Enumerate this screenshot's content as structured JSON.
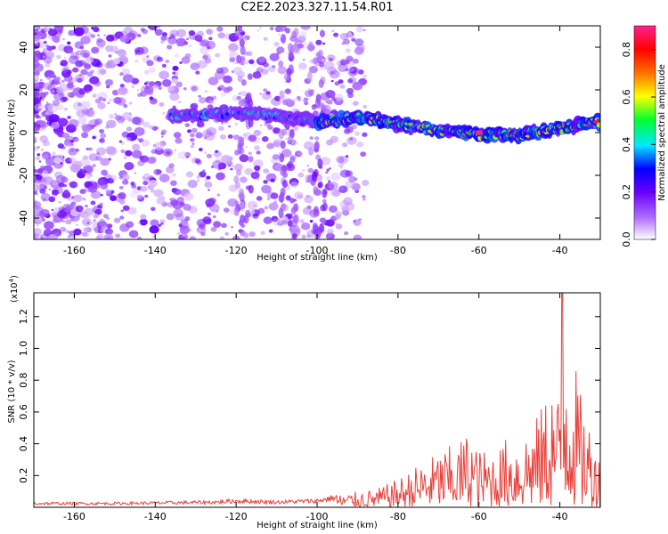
{
  "figure_title": "C2E2.2023.327.11.54.R01",
  "chart_data": [
    {
      "type": "heatmap",
      "xlabel": "Height of straight line (km)",
      "ylabel": "Frequency (Hz)",
      "xlim": [
        -170,
        -30
      ],
      "ylim": [
        -50,
        50
      ],
      "x_ticks": [
        "-160",
        "-140",
        "-120",
        "-100",
        "-80",
        "-60",
        "-40"
      ],
      "x_tick_values": [
        -160,
        -140,
        -120,
        -100,
        -80,
        -60,
        -40
      ],
      "y_ticks": [
        "-40",
        "-20",
        "0",
        "20",
        "40"
      ],
      "y_tick_values": [
        -40,
        -20,
        0,
        20,
        40
      ],
      "ridge": {
        "x": [
          -135,
          -120,
          -110,
          -100,
          -90,
          -80,
          -70,
          -60,
          -50,
          -40,
          -30
        ],
        "y": [
          8,
          9,
          8,
          5,
          7,
          4,
          1,
          -1,
          -1,
          2,
          5
        ]
      },
      "peak": {
        "x": -60,
        "y": 0,
        "amplitude": 0.9
      },
      "colorbar": {
        "label": "Normalized spectral amplitude",
        "range": [
          0.0,
          0.9
        ],
        "ticks": [
          "0.0",
          "0.2",
          "0.4",
          "0.6",
          "0.8"
        ],
        "tick_values": [
          0.0,
          0.2,
          0.4,
          0.6,
          0.8
        ],
        "colors": [
          "#ffffff",
          "#b070ff",
          "#6a00ff",
          "#0000ff",
          "#00e8ff",
          "#00ff30",
          "#ffff00",
          "#ff7000",
          "#ff0000",
          "#ff2090"
        ]
      }
    },
    {
      "type": "line",
      "xlabel": "Height of straight line (km)",
      "ylabel": "SNR (10 * v/v)",
      "scale_label": "(x10",
      "scale_exp": "4",
      "scale_close": ")",
      "xlim": [
        -170,
        -30
      ],
      "ylim": [
        0,
        1.35
      ],
      "x_ticks": [
        "-160",
        "-140",
        "-120",
        "-100",
        "-80",
        "-60",
        "-40"
      ],
      "x_tick_values": [
        -160,
        -140,
        -120,
        -100,
        -80,
        -60,
        -40
      ],
      "y_ticks": [
        "0.2",
        "0.4",
        "0.6",
        "0.8",
        "1.0",
        "1.2"
      ],
      "y_tick_values": [
        0.2,
        0.4,
        0.6,
        0.8,
        1.0,
        1.2
      ],
      "color": "#e8403a",
      "envelope": {
        "x": [
          -170,
          -150,
          -125,
          -120,
          -110,
          -100,
          -95,
          -85,
          -80,
          -75,
          -70,
          -65,
          -62,
          -60,
          -55,
          -53,
          -50,
          -45,
          -42,
          -40,
          -39,
          -35,
          -32,
          -30
        ],
        "y": [
          0.03,
          0.03,
          0.04,
          0.05,
          0.04,
          0.05,
          0.08,
          0.12,
          0.18,
          0.27,
          0.35,
          0.42,
          0.5,
          0.36,
          0.38,
          0.45,
          0.45,
          0.6,
          0.82,
          0.7,
          1.35,
          0.72,
          0.5,
          0.3
        ]
      }
    }
  ]
}
